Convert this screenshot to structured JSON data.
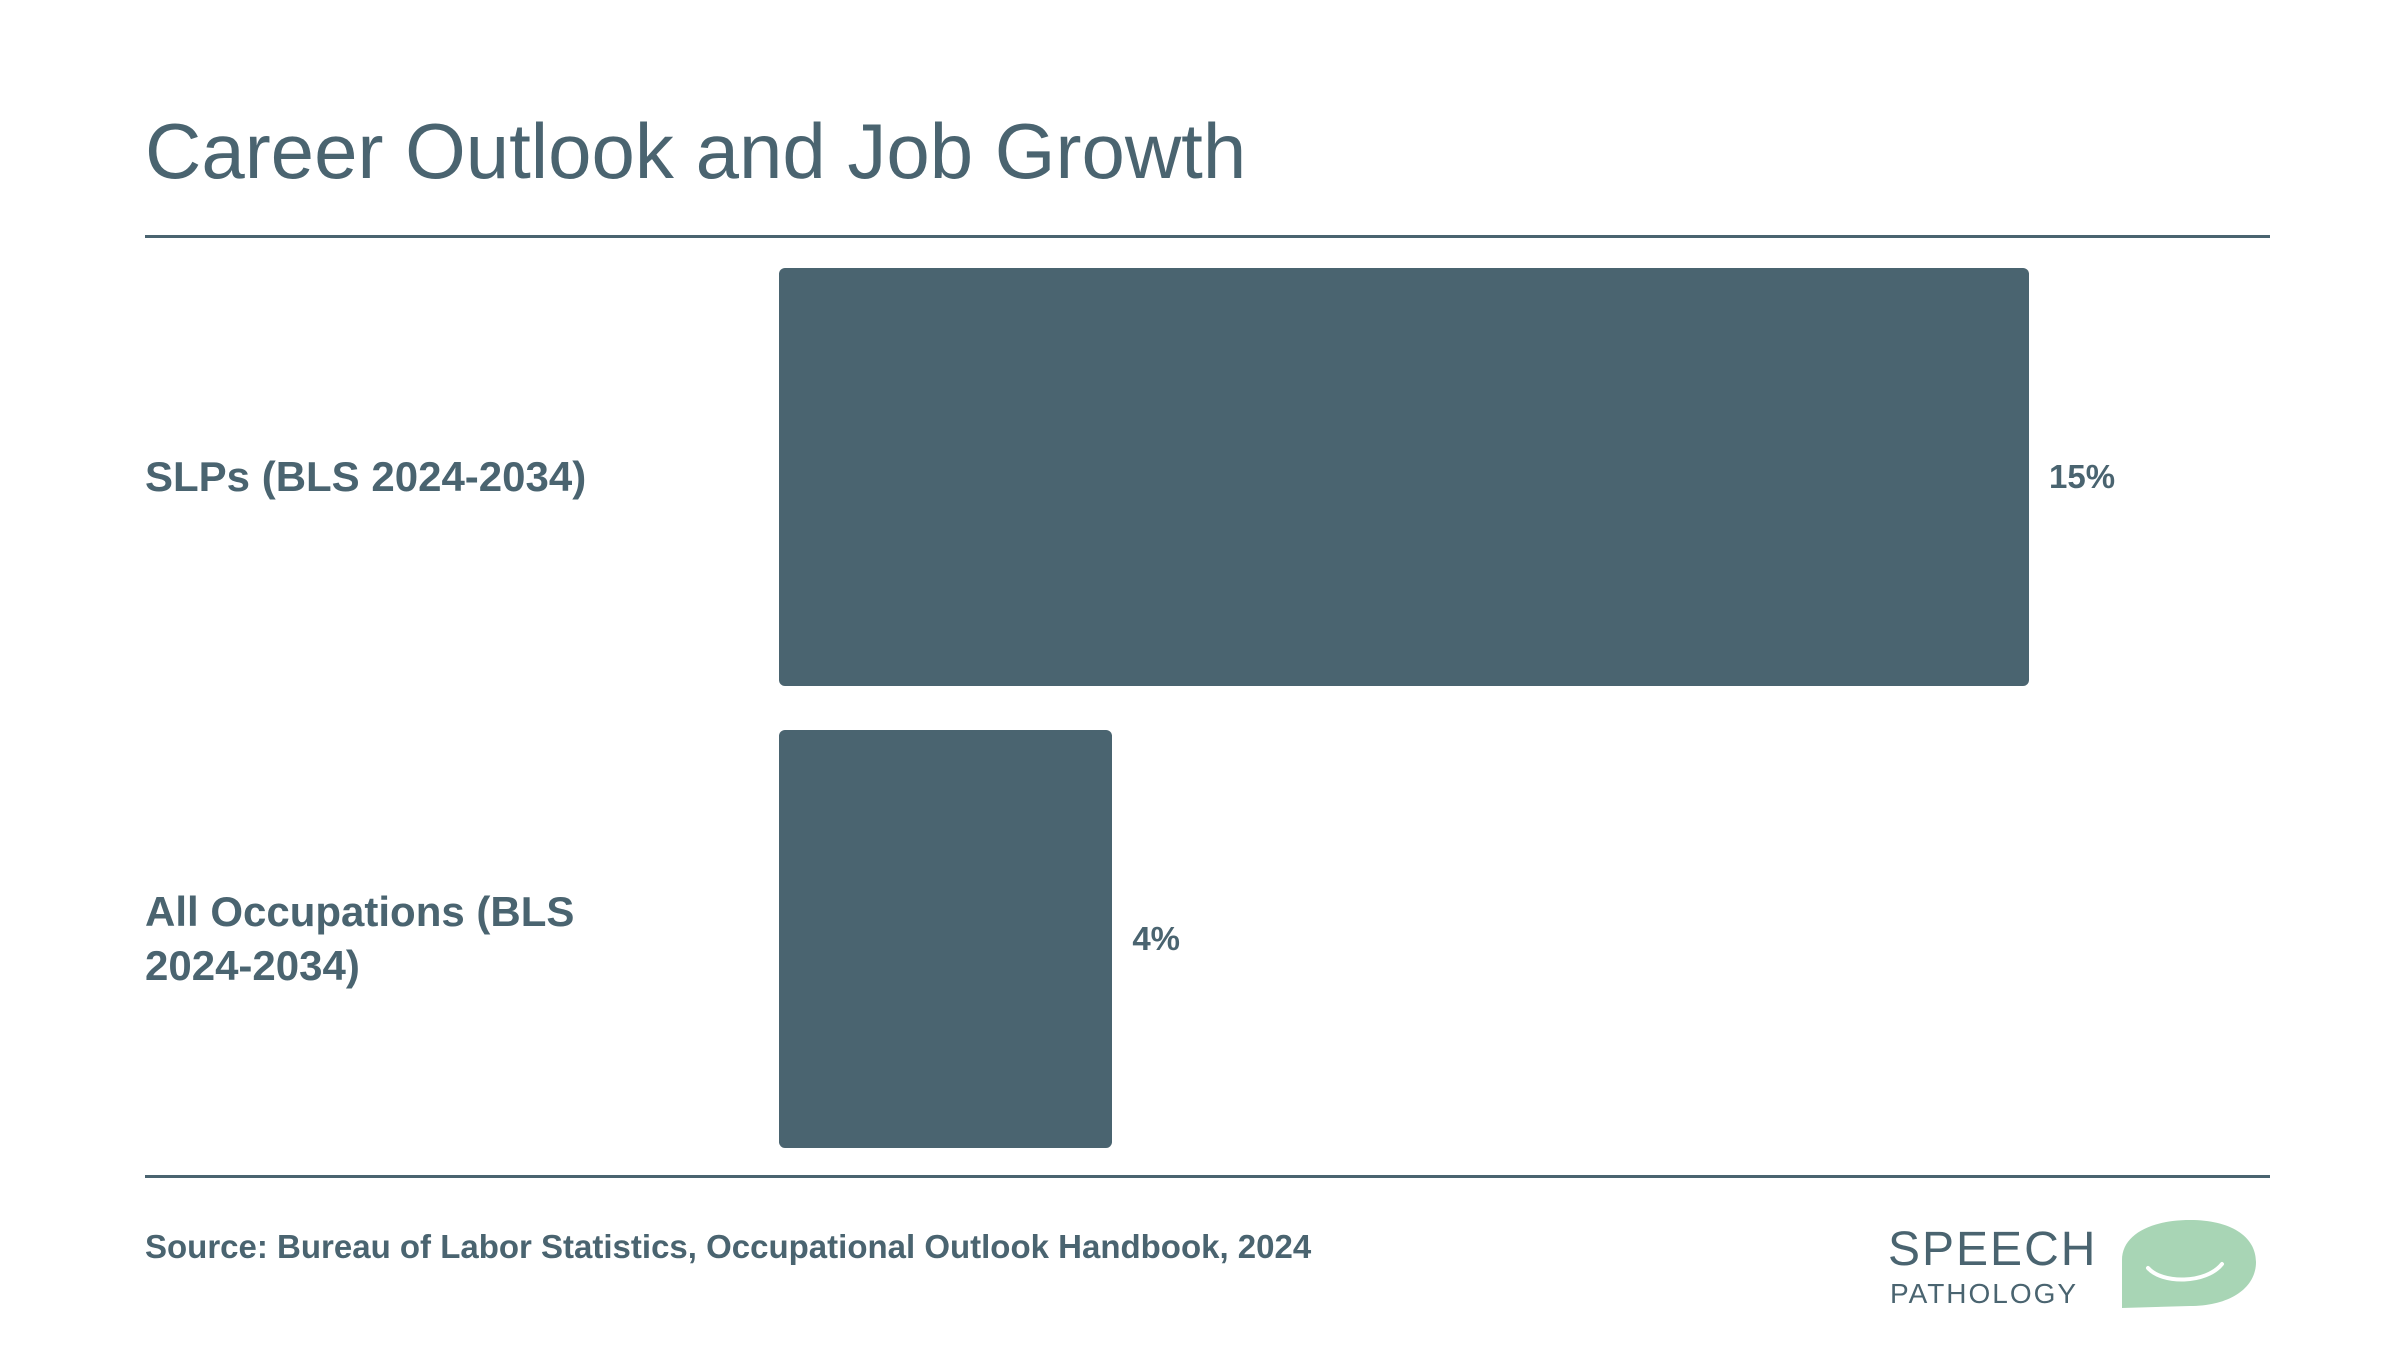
{
  "slide": {
    "title": "Career Outlook and Job Growth",
    "source": "Source: Bureau of Labor Statistics, Occupational Outlook Handbook, 2024"
  },
  "logo": {
    "line1": "SPEECH",
    "line2": "PATHOLOGY",
    "icon": "speech-bubble-smile-icon",
    "bubble_color": "#a8d5b5"
  },
  "colors": {
    "bar": "#4a6470",
    "text": "#4a6470"
  },
  "chart_data": {
    "type": "bar",
    "orientation": "horizontal",
    "categories": [
      "SLPs (BLS 2024-2034)",
      "All Occupations (BLS 2024-2034)"
    ],
    "values": [
      15,
      4
    ],
    "value_labels": [
      "15%",
      "4%"
    ],
    "unit": "%",
    "xlim": [
      0,
      15
    ],
    "grid": false
  }
}
